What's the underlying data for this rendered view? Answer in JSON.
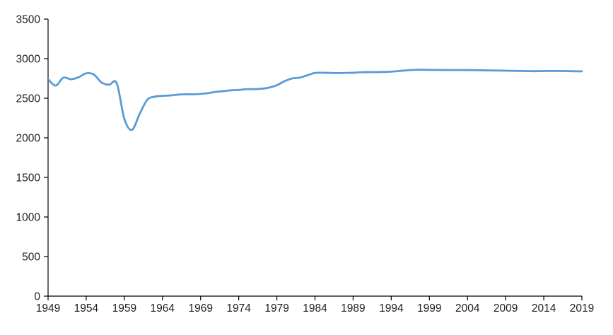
{
  "chart_data": {
    "type": "line",
    "title": "",
    "xlabel": "",
    "ylabel": "",
    "grid": false,
    "legend": false,
    "line_color": "#5B9BD5",
    "axis_color": "#000000",
    "label_color": "#1f1f1f",
    "ylim": [
      0,
      3500
    ],
    "y_tick_interval": 500,
    "y_tick_labels": [
      "0",
      "500",
      "1000",
      "1500",
      "2000",
      "2500",
      "3000",
      "3500"
    ],
    "x_start": 1949,
    "x_end": 2019,
    "x_tick_interval": 5,
    "x_tick_labels": [
      "1949",
      "1954",
      "1959",
      "1964",
      "1969",
      "1974",
      "1979",
      "1984",
      "1989",
      "1994",
      "1999",
      "2004",
      "2009",
      "2014",
      "2019"
    ],
    "x": [
      1949,
      1950,
      1951,
      1952,
      1953,
      1954,
      1955,
      1956,
      1957,
      1958,
      1959,
      1960,
      1961,
      1962,
      1963,
      1964,
      1965,
      1966,
      1967,
      1968,
      1969,
      1970,
      1971,
      1972,
      1973,
      1974,
      1975,
      1976,
      1977,
      1978,
      1979,
      1980,
      1981,
      1982,
      1983,
      1984,
      1985,
      1986,
      1987,
      1988,
      1989,
      1990,
      1991,
      1992,
      1993,
      1994,
      1995,
      1996,
      1997,
      1998,
      1999,
      2000,
      2001,
      2002,
      2003,
      2004,
      2005,
      2006,
      2007,
      2008,
      2009,
      2010,
      2011,
      2012,
      2013,
      2014,
      2015,
      2016,
      2017,
      2018,
      2019
    ],
    "series": [
      {
        "name": "series-1",
        "values": [
          2740,
          2660,
          2760,
          2740,
          2765,
          2815,
          2800,
          2700,
          2670,
          2690,
          2240,
          2100,
          2300,
          2480,
          2520,
          2530,
          2535,
          2545,
          2550,
          2550,
          2555,
          2565,
          2580,
          2590,
          2600,
          2605,
          2615,
          2615,
          2620,
          2635,
          2665,
          2715,
          2750,
          2760,
          2790,
          2820,
          2822,
          2820,
          2818,
          2820,
          2822,
          2828,
          2830,
          2830,
          2832,
          2836,
          2844,
          2852,
          2858,
          2860,
          2858,
          2857,
          2856,
          2856,
          2856,
          2856,
          2855,
          2853,
          2851,
          2850,
          2848,
          2846,
          2845,
          2843,
          2842,
          2844,
          2845,
          2844,
          2843,
          2841,
          2840
        ]
      }
    ]
  }
}
